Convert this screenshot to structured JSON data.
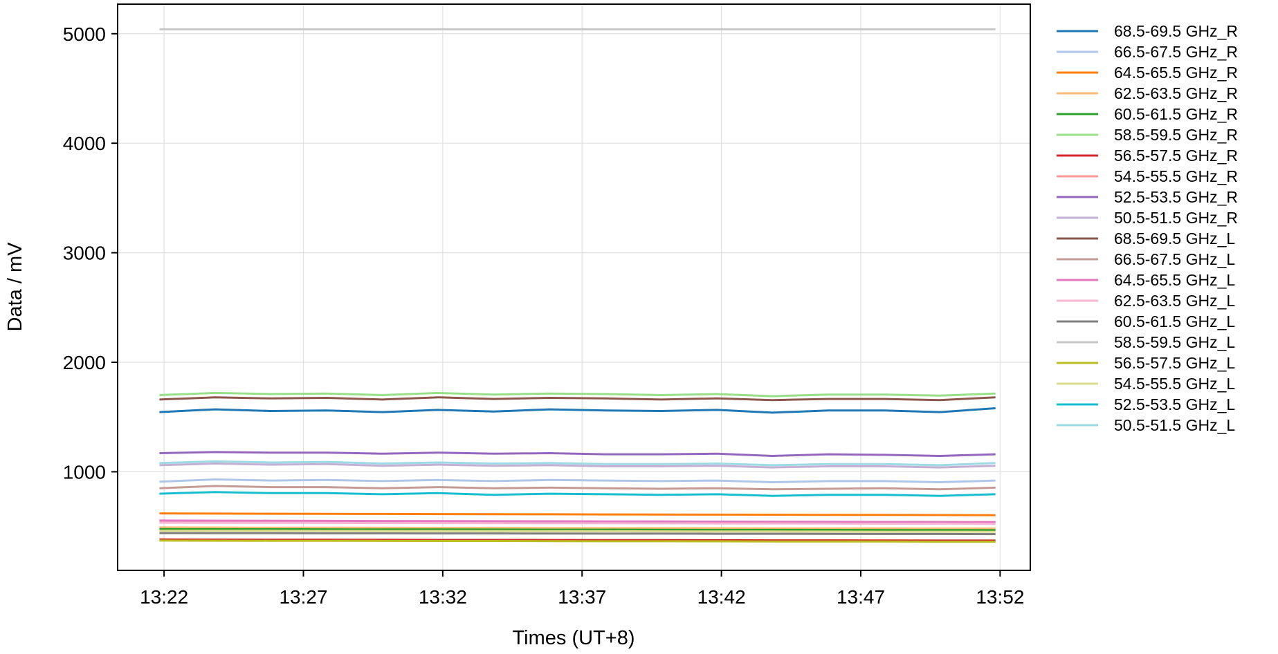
{
  "chart_data": {
    "type": "line",
    "title": "",
    "xlabel": "Times (UT+8)",
    "ylabel": "Data / mV",
    "x_ticks": [
      "13:22",
      "13:27",
      "13:32",
      "13:37",
      "13:42",
      "13:47",
      "13:52"
    ],
    "y_ticks": [
      1000,
      2000,
      3000,
      4000,
      5000
    ],
    "ylim": [
      100,
      5270
    ],
    "xlim": [
      "13:20:20",
      "13:53:05"
    ],
    "grid": true,
    "legend_position": "outside-right",
    "x": [
      "13:21:50",
      "13:23:50",
      "13:25:50",
      "13:27:50",
      "13:29:50",
      "13:31:50",
      "13:33:50",
      "13:35:50",
      "13:37:50",
      "13:39:50",
      "13:41:50",
      "13:43:50",
      "13:45:50",
      "13:47:50",
      "13:49:50",
      "13:51:50"
    ],
    "series": [
      {
        "name": "68.5-69.5 GHz_R",
        "color": "#1f77b4",
        "values": [
          1545,
          1570,
          1555,
          1560,
          1545,
          1565,
          1550,
          1570,
          1560,
          1555,
          1565,
          1540,
          1560,
          1560,
          1545,
          1580
        ]
      },
      {
        "name": "66.5-67.5 GHz_R",
        "color": "#aec7e8",
        "values": [
          910,
          930,
          920,
          925,
          915,
          925,
          915,
          925,
          920,
          915,
          920,
          905,
          915,
          915,
          905,
          920
        ]
      },
      {
        "name": "64.5-65.5 GHz_R",
        "color": "#ff7f0e",
        "values": [
          620,
          618,
          617,
          616,
          615,
          614,
          613,
          612,
          611,
          610,
          609,
          608,
          607,
          606,
          605,
          604
        ]
      },
      {
        "name": "62.5-63.5 GHz_R",
        "color": "#ffbb78",
        "values": [
          492,
          491,
          490,
          490,
          489,
          488,
          488,
          487,
          486,
          486,
          485,
          484,
          484,
          483,
          482,
          482
        ]
      },
      {
        "name": "60.5-61.5 GHz_R",
        "color": "#2ca02c",
        "values": [
          477,
          476,
          476,
          475,
          474,
          474,
          473,
          472,
          472,
          471,
          470,
          470,
          469,
          468,
          468,
          467
        ]
      },
      {
        "name": "58.5-59.5 GHz_R",
        "color": "#98df8a",
        "values": [
          1700,
          1720,
          1710,
          1715,
          1700,
          1720,
          1705,
          1715,
          1710,
          1700,
          1710,
          1690,
          1705,
          1705,
          1695,
          1715
        ]
      },
      {
        "name": "56.5-57.5 GHz_R",
        "color": "#d62728",
        "values": [
          382,
          381,
          380,
          380,
          379,
          378,
          378,
          377,
          376,
          376,
          375,
          374,
          374,
          373,
          372,
          372
        ]
      },
      {
        "name": "54.5-55.5 GHz_R",
        "color": "#ff9896",
        "values": [
          552,
          551,
          550,
          549,
          548,
          548,
          547,
          546,
          545,
          545,
          544,
          543,
          542,
          542,
          541,
          540
        ]
      },
      {
        "name": "52.5-53.5 GHz_R",
        "color": "#9467bd",
        "values": [
          1170,
          1180,
          1175,
          1175,
          1165,
          1175,
          1165,
          1170,
          1160,
          1160,
          1165,
          1145,
          1160,
          1155,
          1145,
          1160
        ]
      },
      {
        "name": "50.5-51.5 GHz_R",
        "color": "#c5b0d5",
        "values": [
          1060,
          1075,
          1065,
          1070,
          1055,
          1065,
          1055,
          1060,
          1050,
          1050,
          1055,
          1040,
          1050,
          1050,
          1040,
          1055
        ]
      },
      {
        "name": "68.5-69.5 GHz_L",
        "color": "#8c564b",
        "values": [
          1660,
          1680,
          1670,
          1675,
          1660,
          1680,
          1665,
          1675,
          1670,
          1660,
          1670,
          1655,
          1665,
          1665,
          1655,
          1680
        ]
      },
      {
        "name": "66.5-67.5 GHz_L",
        "color": "#c49c94",
        "values": [
          850,
          870,
          860,
          860,
          850,
          860,
          850,
          855,
          850,
          845,
          850,
          840,
          845,
          850,
          840,
          855
        ]
      },
      {
        "name": "64.5-65.5 GHz_L",
        "color": "#e377c2",
        "values": [
          555,
          554,
          553,
          552,
          551,
          550,
          549,
          548,
          547,
          546,
          545,
          544,
          543,
          542,
          541,
          540
        ]
      },
      {
        "name": "62.5-63.5 GHz_L",
        "color": "#f7b6d2",
        "values": [
          535,
          534,
          534,
          533,
          532,
          532,
          531,
          530,
          530,
          529,
          528,
          528,
          527,
          526,
          526,
          525
        ]
      },
      {
        "name": "60.5-61.5 GHz_L",
        "color": "#7f7f7f",
        "values": [
          440,
          439,
          439,
          438,
          438,
          437,
          437,
          436,
          435,
          435,
          434,
          434,
          433,
          432,
          432,
          431
        ]
      },
      {
        "name": "58.5-59.5 GHz_L",
        "color": "#c7c7c7",
        "values": [
          5040,
          5040,
          5040,
          5040,
          5040,
          5040,
          5040,
          5040,
          5040,
          5040,
          5040,
          5040,
          5040,
          5040,
          5040,
          5040
        ]
      },
      {
        "name": "56.5-57.5 GHz_L",
        "color": "#bcbd22",
        "values": [
          372,
          371,
          370,
          370,
          369,
          368,
          368,
          367,
          366,
          366,
          365,
          364,
          364,
          363,
          362,
          362
        ]
      },
      {
        "name": "54.5-55.5 GHz_L",
        "color": "#dbdb8d",
        "values": [
          462,
          461,
          461,
          460,
          459,
          459,
          458,
          457,
          457,
          456,
          455,
          455,
          454,
          453,
          453,
          452
        ]
      },
      {
        "name": "52.5-53.5 GHz_L",
        "color": "#17becf",
        "values": [
          800,
          815,
          805,
          805,
          795,
          805,
          790,
          800,
          795,
          790,
          795,
          780,
          790,
          790,
          780,
          795
        ]
      },
      {
        "name": "50.5-51.5 GHz_L",
        "color": "#9edae5",
        "values": [
          1080,
          1095,
          1085,
          1090,
          1075,
          1085,
          1075,
          1080,
          1070,
          1070,
          1075,
          1060,
          1070,
          1070,
          1060,
          1080
        ]
      }
    ]
  }
}
